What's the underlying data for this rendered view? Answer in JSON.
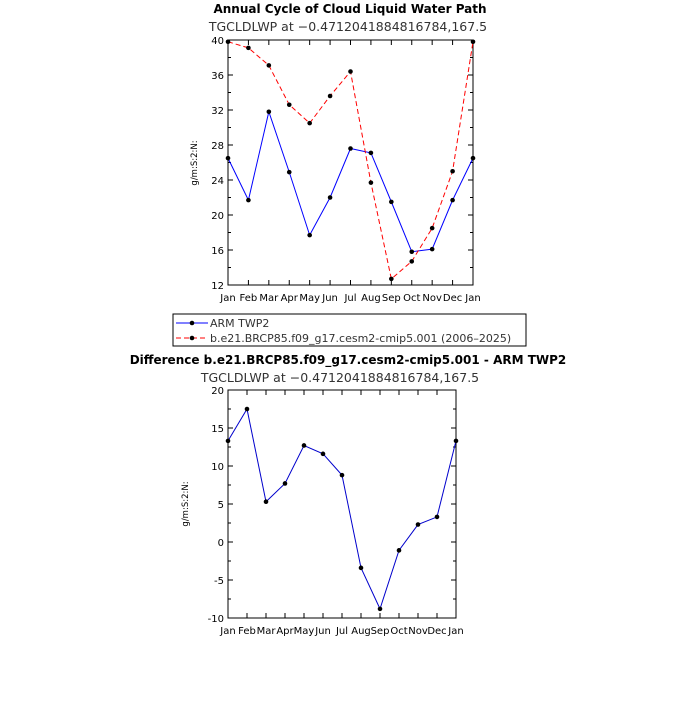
{
  "chart_data": [
    {
      "type": "line",
      "title": "Annual Cycle of Cloud Liquid Water Path",
      "subtitle": "TGCLDLWP at −0.4712041884816784,167.5",
      "ylabel": "g/m:S:2:N:",
      "categories": [
        "Jan",
        "Feb",
        "Mar",
        "Apr",
        "May",
        "Jun",
        "Jul",
        "Aug",
        "Sep",
        "Oct",
        "Nov",
        "Dec",
        "Jan"
      ],
      "ylim": [
        12,
        40
      ],
      "yticks": [
        12,
        16,
        20,
        24,
        28,
        32,
        36,
        40
      ],
      "series": [
        {
          "name": "ARM TWP2",
          "color": "#0000ff",
          "dash": "solid",
          "values": [
            26.5,
            21.7,
            31.8,
            24.9,
            17.7,
            22.0,
            27.6,
            27.1,
            21.5,
            15.8,
            16.1,
            21.7,
            26.5
          ]
        },
        {
          "name": "b.e21.BRCP85.f09_g17.cesm2-cmip5.001 (2006–2025)",
          "color": "#ff0000",
          "dash": "dashed",
          "values": [
            39.8,
            39.1,
            37.1,
            32.6,
            30.5,
            33.6,
            36.4,
            23.7,
            12.7,
            14.7,
            18.5,
            25.0,
            39.8
          ]
        }
      ],
      "legend": "below"
    },
    {
      "type": "line",
      "title": "Difference b.e21.BRCP85.f09_g17.cesm2-cmip5.001 - ARM TWP2",
      "subtitle": "TGCLDLWP at −0.4712041884816784,167.5",
      "ylabel": "g/m:S:2:N:",
      "categories": [
        "Jan",
        "Feb",
        "Mar",
        "Apr",
        "May",
        "Jun",
        "Jul",
        "Aug",
        "Sep",
        "Oct",
        "Nov",
        "Dec",
        "Jan"
      ],
      "ylim": [
        -10,
        20
      ],
      "yticks": [
        -10,
        -5,
        0,
        5,
        10,
        15,
        20
      ],
      "series": [
        {
          "color": "#0000cc",
          "dash": "solid",
          "values": [
            13.3,
            17.5,
            5.3,
            7.7,
            12.7,
            11.6,
            8.8,
            -3.4,
            -8.8,
            -1.1,
            2.3,
            3.3,
            13.3
          ]
        }
      ]
    }
  ]
}
